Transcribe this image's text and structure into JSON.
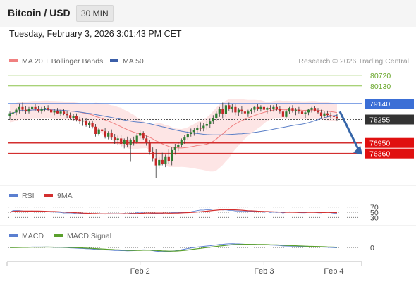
{
  "header": {
    "title": "Bitcoin / USD",
    "timeframe": "30 MIN"
  },
  "datetime": "Tuesday, February 3, 2026 3:01:43 PM CET",
  "colors": {
    "bull": "#2e7d32",
    "bear": "#c62828",
    "ma20": "#f08080",
    "band_fill": "#fde0e0",
    "ma50": "#5b7fc7",
    "resistance": "#8bc34a",
    "current": "#333333",
    "pivot": "#3b6fd6",
    "support": "#d32f2f",
    "arrow": "#3565a8",
    "rsi": "#5b7fd0",
    "rsi9": "#d32f2f",
    "macd": "#5b7fd0",
    "macd_signal": "#5aa02c"
  },
  "chart_data": [
    {
      "type": "candlestick",
      "legend": [
        "MA 20 + Bollinger Bands",
        "MA 50"
      ],
      "credit": "Research © 2026 Trading Central",
      "x_ticks": [
        "Feb 2",
        "Feb 3",
        "Feb 4"
      ],
      "levels": [
        {
          "value": 80720,
          "label": "80720",
          "role": "resistance"
        },
        {
          "value": 80130,
          "label": "80130",
          "role": "resistance"
        },
        {
          "value": 79140,
          "label": "79140",
          "role": "pivot"
        },
        {
          "value": 78255,
          "label": "78255",
          "role": "current"
        },
        {
          "value": 76950,
          "label": "76950",
          "role": "support"
        },
        {
          "value": 76360,
          "label": "76360",
          "role": "support"
        }
      ],
      "ylim": [
        74700,
        81300
      ],
      "forecast": "down",
      "ohlc": [
        [
          78450,
          78700,
          78250,
          78600
        ],
        [
          78600,
          78850,
          78400,
          78650
        ],
        [
          78650,
          78900,
          78500,
          78800
        ],
        [
          78800,
          79150,
          78600,
          78950
        ],
        [
          78950,
          79200,
          78700,
          78800
        ],
        [
          78800,
          79000,
          78550,
          78700
        ],
        [
          78700,
          78950,
          78600,
          78850
        ],
        [
          78850,
          79050,
          78700,
          78950
        ],
        [
          78950,
          79100,
          78750,
          78850
        ],
        [
          78850,
          79000,
          78650,
          78750
        ],
        [
          78750,
          78950,
          78600,
          78850
        ],
        [
          78850,
          79000,
          78700,
          78900
        ],
        [
          78900,
          79050,
          78750,
          78800
        ],
        [
          78800,
          78950,
          78600,
          78650
        ],
        [
          78650,
          78850,
          78500,
          78750
        ],
        [
          78750,
          78900,
          78550,
          78600
        ],
        [
          78600,
          78800,
          78450,
          78700
        ],
        [
          78700,
          78850,
          78500,
          78550
        ],
        [
          78550,
          78750,
          78350,
          78500
        ],
        [
          78500,
          78650,
          78250,
          78350
        ],
        [
          78350,
          78550,
          78200,
          78450
        ],
        [
          78450,
          78600,
          78150,
          78250
        ],
        [
          78250,
          78400,
          78000,
          78150
        ],
        [
          78150,
          78350,
          77900,
          78200
        ],
        [
          78200,
          78350,
          77850,
          77950
        ],
        [
          77950,
          78150,
          77800,
          78050
        ],
        [
          78050,
          78200,
          77750,
          77850
        ],
        [
          77850,
          78000,
          77300,
          77450
        ],
        [
          77450,
          77800,
          77350,
          77700
        ],
        [
          77700,
          77900,
          77500,
          77600
        ],
        [
          77600,
          77800,
          77200,
          77300
        ],
        [
          77300,
          77600,
          77150,
          77500
        ],
        [
          77500,
          77700,
          77100,
          77250
        ],
        [
          77250,
          77450,
          76900,
          77100
        ],
        [
          77100,
          77350,
          76850,
          77200
        ],
        [
          77200,
          77400,
          76700,
          76900
        ],
        [
          76900,
          77200,
          76650,
          77100
        ],
        [
          77100,
          77300,
          76700,
          76850
        ],
        [
          76850,
          77200,
          75900,
          77100
        ],
        [
          77100,
          77300,
          76800,
          77000
        ],
        [
          77000,
          77500,
          76900,
          77350
        ],
        [
          77350,
          77650,
          77200,
          77500
        ],
        [
          77500,
          77600,
          77100,
          77200
        ],
        [
          77200,
          77350,
          76800,
          76950
        ],
        [
          76950,
          77100,
          76300,
          76450
        ],
        [
          76450,
          76700,
          75900,
          76100
        ],
        [
          76100,
          76600,
          75000,
          75700
        ],
        [
          75700,
          76200,
          75500,
          76000
        ],
        [
          76000,
          76400,
          75700,
          75800
        ],
        [
          75800,
          76300,
          75600,
          76200
        ],
        [
          76200,
          76600,
          75800,
          75950
        ],
        [
          75950,
          76700,
          75700,
          76550
        ],
        [
          76550,
          76900,
          76300,
          76700
        ],
        [
          76700,
          77000,
          76500,
          76850
        ],
        [
          76850,
          77200,
          76700,
          77100
        ],
        [
          77100,
          77400,
          76900,
          77250
        ],
        [
          77250,
          77600,
          77100,
          77450
        ],
        [
          77450,
          77750,
          77300,
          77550
        ],
        [
          77550,
          77800,
          77350,
          77650
        ],
        [
          77650,
          77950,
          77500,
          77800
        ],
        [
          77800,
          78100,
          77600,
          77750
        ],
        [
          77750,
          78050,
          77600,
          77900
        ],
        [
          77900,
          78200,
          77700,
          78000
        ],
        [
          78000,
          78300,
          77800,
          78150
        ],
        [
          78150,
          78500,
          78000,
          78350
        ],
        [
          78350,
          78700,
          78200,
          78600
        ],
        [
          78600,
          78950,
          78400,
          78850
        ],
        [
          78850,
          79200,
          78300,
          78550
        ],
        [
          78550,
          79150,
          78400,
          79050
        ],
        [
          79050,
          79200,
          78750,
          78850
        ],
        [
          78850,
          79100,
          78650,
          78950
        ],
        [
          78950,
          79100,
          78500,
          78650
        ],
        [
          78650,
          78900,
          78450,
          78800
        ],
        [
          78800,
          79000,
          78550,
          78700
        ],
        [
          78700,
          78850,
          78450,
          78600
        ],
        [
          78600,
          78800,
          78400,
          78700
        ],
        [
          78700,
          78900,
          78550,
          78800
        ],
        [
          78800,
          79000,
          78650,
          78950
        ],
        [
          78950,
          79100,
          78750,
          78850
        ],
        [
          78850,
          79050,
          78700,
          78950
        ],
        [
          78950,
          79100,
          78700,
          78800
        ],
        [
          78800,
          78950,
          78600,
          78900
        ],
        [
          78900,
          79050,
          78700,
          78850
        ],
        [
          78850,
          79050,
          78700,
          78950
        ],
        [
          78950,
          79100,
          78750,
          78850
        ],
        [
          78850,
          79000,
          78600,
          78700
        ],
        [
          78700,
          78900,
          78200,
          78400
        ],
        [
          78400,
          78800,
          78300,
          78700
        ],
        [
          78700,
          78950,
          78550,
          78900
        ],
        [
          78900,
          79050,
          78650,
          78750
        ],
        [
          78750,
          78900,
          78500,
          78800
        ],
        [
          78800,
          78950,
          78600,
          78700
        ],
        [
          78700,
          78850,
          78400,
          78550
        ],
        [
          78550,
          78750,
          78350,
          78650
        ],
        [
          78650,
          78850,
          78500,
          78800
        ],
        [
          78800,
          78950,
          78650,
          78900
        ],
        [
          78900,
          79000,
          78700,
          78750
        ],
        [
          78750,
          78900,
          78550,
          78650
        ],
        [
          78650,
          78800,
          78300,
          78450
        ],
        [
          78450,
          78700,
          78350,
          78600
        ],
        [
          78600,
          78750,
          78400,
          78500
        ],
        [
          78500,
          78650,
          78300,
          78450
        ],
        [
          78450,
          78600,
          78250,
          78400
        ],
        [
          78400,
          78550,
          78200,
          78300
        ]
      ]
    },
    {
      "type": "line",
      "title": "RSI",
      "series": [
        {
          "name": "RSI"
        },
        {
          "name": "9MA"
        }
      ],
      "levels": [
        70,
        50,
        30
      ],
      "ylim": [
        0,
        100
      ]
    },
    {
      "type": "line",
      "title": "MACD",
      "series": [
        {
          "name": "MACD"
        },
        {
          "name": "MACD Signal"
        }
      ],
      "levels": [
        0
      ],
      "ylim": [
        -800,
        600
      ]
    }
  ]
}
